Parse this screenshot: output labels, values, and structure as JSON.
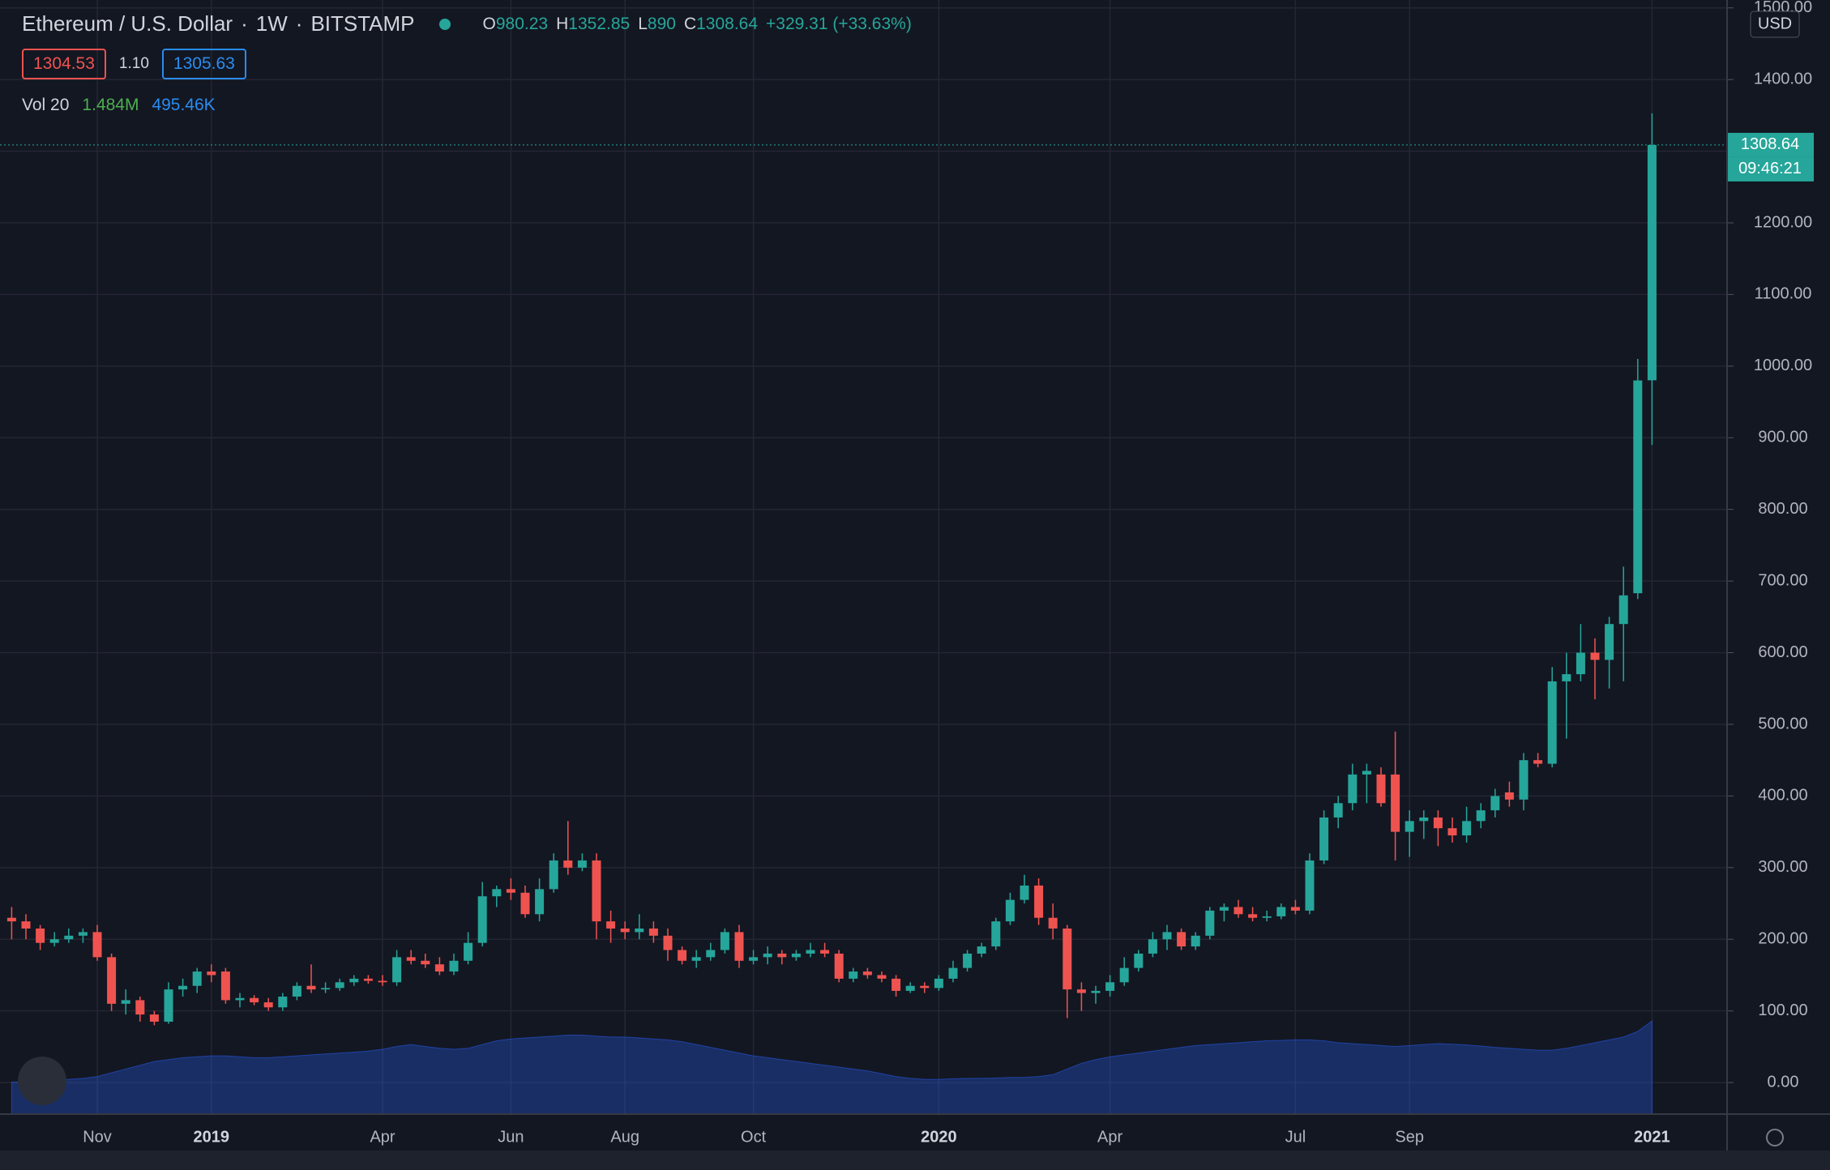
{
  "header": {
    "symbol": "Ethereum / U.S. Dollar",
    "interval": "1W",
    "exchange": "BITSTAMP",
    "ohlc_letters": [
      "O",
      "H",
      "L",
      "C"
    ],
    "change": "+329.31 (+33.63%)",
    "bid": "1304.53",
    "spread": "1.10",
    "ask": "1305.63",
    "volume_title": "Vol 20",
    "volume": "1.484M",
    "volume_ma": "495.46K"
  },
  "chart_data": {
    "type": "candlestick",
    "currency": "USD",
    "countdown": "09:46:21",
    "up_color": "#26a69a",
    "down_color": "#ef5350",
    "volume_color": "#2962ff",
    "grid": true,
    "ylim": [
      -44,
      1511
    ],
    "yticks": [
      {
        "value": 0,
        "label": "0.00"
      },
      {
        "value": 100,
        "label": "100.00"
      },
      {
        "value": 200,
        "label": "200.00"
      },
      {
        "value": 300,
        "label": "300.00"
      },
      {
        "value": 400,
        "label": "400.00"
      },
      {
        "value": 500,
        "label": "500.00"
      },
      {
        "value": 600,
        "label": "600.00"
      },
      {
        "value": 700,
        "label": "700.00"
      },
      {
        "value": 800,
        "label": "800.00"
      },
      {
        "value": 900,
        "label": "900.00"
      },
      {
        "value": 1000,
        "label": "1000.00"
      },
      {
        "value": 1100,
        "label": "1100.00"
      },
      {
        "value": 1200,
        "label": "1200.00"
      },
      {
        "value": 1300,
        "label": "1300.00"
      },
      {
        "value": 1400,
        "label": "1400.00"
      },
      {
        "value": 1500,
        "label": "1500.00"
      }
    ],
    "xticks": [
      {
        "value": 6,
        "label": "Nov"
      },
      {
        "value": 14,
        "label": "2019"
      },
      {
        "value": 26,
        "label": "Apr"
      },
      {
        "value": 35,
        "label": "Jun"
      },
      {
        "value": 43,
        "label": "Aug"
      },
      {
        "value": 52,
        "label": "Oct"
      },
      {
        "value": 65,
        "label": "2020"
      },
      {
        "value": 77,
        "label": "Apr"
      },
      {
        "value": 90,
        "label": "Jul"
      },
      {
        "value": 98,
        "label": "Sep"
      },
      {
        "value": 115,
        "label": "2021"
      }
    ],
    "ohlc": [
      [
        230,
        245,
        200,
        225
      ],
      [
        225,
        235,
        200,
        215
      ],
      [
        215,
        220,
        185,
        195
      ],
      [
        195,
        210,
        190,
        200
      ],
      [
        200,
        215,
        195,
        205
      ],
      [
        205,
        215,
        195,
        210
      ],
      [
        210,
        220,
        170,
        175
      ],
      [
        175,
        180,
        100,
        110
      ],
      [
        110,
        130,
        95,
        115
      ],
      [
        115,
        120,
        85,
        95
      ],
      [
        95,
        100,
        80,
        85
      ],
      [
        85,
        140,
        82,
        130
      ],
      [
        130,
        145,
        120,
        135
      ],
      [
        135,
        160,
        125,
        155
      ],
      [
        155,
        165,
        140,
        150
      ],
      [
        155,
        160,
        110,
        115
      ],
      [
        115,
        125,
        105,
        118
      ],
      [
        118,
        122,
        108,
        112
      ],
      [
        112,
        118,
        100,
        105
      ],
      [
        105,
        125,
        100,
        120
      ],
      [
        120,
        140,
        115,
        135
      ],
      [
        135,
        165,
        125,
        130
      ],
      [
        130,
        140,
        125,
        132
      ],
      [
        132,
        145,
        128,
        140
      ],
      [
        140,
        150,
        135,
        145
      ],
      [
        145,
        150,
        138,
        142
      ],
      [
        142,
        150,
        135,
        140
      ],
      [
        140,
        185,
        135,
        175
      ],
      [
        175,
        185,
        165,
        170
      ],
      [
        170,
        180,
        160,
        165
      ],
      [
        165,
        175,
        150,
        155
      ],
      [
        155,
        180,
        150,
        170
      ],
      [
        170,
        210,
        165,
        195
      ],
      [
        195,
        280,
        190,
        260
      ],
      [
        260,
        275,
        245,
        270
      ],
      [
        270,
        285,
        255,
        265
      ],
      [
        265,
        275,
        230,
        235
      ],
      [
        235,
        285,
        225,
        270
      ],
      [
        270,
        320,
        265,
        310
      ],
      [
        310,
        365,
        290,
        300
      ],
      [
        300,
        320,
        295,
        310
      ],
      [
        310,
        320,
        200,
        225
      ],
      [
        225,
        240,
        195,
        215
      ],
      [
        215,
        225,
        200,
        210
      ],
      [
        210,
        235,
        200,
        215
      ],
      [
        215,
        225,
        195,
        205
      ],
      [
        205,
        215,
        170,
        185
      ],
      [
        185,
        190,
        165,
        170
      ],
      [
        170,
        185,
        160,
        175
      ],
      [
        175,
        195,
        170,
        185
      ],
      [
        185,
        215,
        180,
        210
      ],
      [
        210,
        220,
        160,
        170
      ],
      [
        170,
        185,
        165,
        175
      ],
      [
        175,
        190,
        165,
        180
      ],
      [
        180,
        185,
        165,
        175
      ],
      [
        175,
        185,
        170,
        180
      ],
      [
        180,
        195,
        175,
        185
      ],
      [
        185,
        195,
        175,
        180
      ],
      [
        180,
        185,
        140,
        145
      ],
      [
        145,
        160,
        140,
        155
      ],
      [
        155,
        160,
        145,
        150
      ],
      [
        150,
        155,
        140,
        145
      ],
      [
        145,
        150,
        120,
        128
      ],
      [
        128,
        140,
        125,
        135
      ],
      [
        135,
        140,
        125,
        132
      ],
      [
        132,
        150,
        128,
        145
      ],
      [
        145,
        170,
        140,
        160
      ],
      [
        160,
        185,
        155,
        180
      ],
      [
        180,
        195,
        175,
        190
      ],
      [
        190,
        230,
        185,
        225
      ],
      [
        225,
        265,
        220,
        255
      ],
      [
        255,
        290,
        250,
        275
      ],
      [
        275,
        285,
        220,
        230
      ],
      [
        230,
        250,
        200,
        215
      ],
      [
        215,
        220,
        90,
        130
      ],
      [
        130,
        140,
        100,
        125
      ],
      [
        125,
        135,
        110,
        128
      ],
      [
        128,
        150,
        120,
        140
      ],
      [
        140,
        175,
        135,
        160
      ],
      [
        160,
        185,
        155,
        180
      ],
      [
        180,
        210,
        175,
        200
      ],
      [
        200,
        220,
        185,
        210
      ],
      [
        210,
        215,
        185,
        190
      ],
      [
        190,
        210,
        185,
        205
      ],
      [
        205,
        245,
        200,
        240
      ],
      [
        240,
        250,
        225,
        245
      ],
      [
        245,
        255,
        230,
        235
      ],
      [
        235,
        245,
        225,
        230
      ],
      [
        230,
        240,
        225,
        232
      ],
      [
        232,
        250,
        228,
        245
      ],
      [
        245,
        255,
        235,
        240
      ],
      [
        240,
        320,
        235,
        310
      ],
      [
        310,
        380,
        305,
        370
      ],
      [
        370,
        400,
        355,
        390
      ],
      [
        390,
        445,
        380,
        430
      ],
      [
        430,
        445,
        390,
        435
      ],
      [
        430,
        440,
        385,
        390
      ],
      [
        430,
        490,
        310,
        350
      ],
      [
        350,
        380,
        315,
        365
      ],
      [
        365,
        380,
        340,
        370
      ],
      [
        370,
        380,
        330,
        355
      ],
      [
        355,
        370,
        335,
        345
      ],
      [
        345,
        385,
        335,
        365
      ],
      [
        365,
        390,
        355,
        380
      ],
      [
        380,
        410,
        370,
        400
      ],
      [
        405,
        420,
        385,
        395
      ],
      [
        395,
        460,
        380,
        450
      ],
      [
        450,
        460,
        440,
        445
      ],
      [
        445,
        580,
        440,
        560
      ],
      [
        560,
        600,
        480,
        570
      ],
      [
        570,
        640,
        560,
        600
      ],
      [
        600,
        620,
        535,
        590
      ],
      [
        590,
        650,
        550,
        640
      ],
      [
        640,
        720,
        560,
        680
      ],
      [
        683,
        1010,
        675,
        980
      ],
      [
        980.23,
        1352.85,
        890.0,
        1308.64
      ]
    ],
    "volume_ma": [
      170,
      172,
      175,
      180,
      185,
      190,
      200,
      220,
      240,
      260,
      280,
      290,
      300,
      305,
      310,
      310,
      305,
      300,
      300,
      305,
      310,
      315,
      320,
      325,
      330,
      335,
      345,
      360,
      370,
      360,
      350,
      345,
      350,
      370,
      390,
      400,
      405,
      410,
      415,
      420,
      420,
      415,
      410,
      410,
      405,
      400,
      395,
      385,
      370,
      355,
      340,
      325,
      310,
      300,
      290,
      280,
      270,
      260,
      250,
      240,
      230,
      215,
      200,
      190,
      185,
      185,
      188,
      190,
      190,
      192,
      195,
      195,
      200,
      210,
      240,
      270,
      290,
      305,
      315,
      325,
      335,
      345,
      355,
      365,
      370,
      375,
      380,
      385,
      390,
      392,
      395,
      395,
      390,
      380,
      375,
      370,
      365,
      360,
      365,
      370,
      375,
      372,
      368,
      362,
      355,
      350,
      345,
      340,
      340,
      350,
      365,
      380,
      395,
      410,
      440,
      495.46
    ]
  }
}
